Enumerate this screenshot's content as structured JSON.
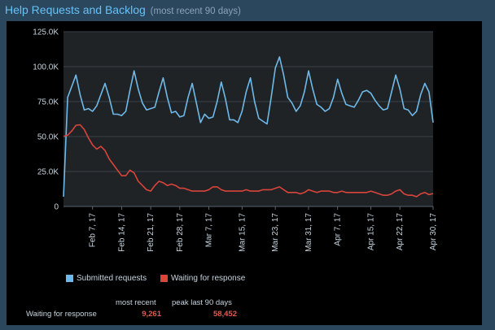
{
  "header": {
    "title": "Help Requests and Backlog",
    "subtitle": "(most recent 90 days)"
  },
  "legend": {
    "items": [
      {
        "label": "Submitted requests",
        "color": "#6fb9e8"
      },
      {
        "label": "Waiting for response",
        "color": "#d9443b"
      }
    ]
  },
  "stats": {
    "col_most_recent": "most recent",
    "col_peak": "peak last 90 days",
    "row_label": "Waiting for response",
    "most_recent_value": "9,261",
    "peak_value": "58,452"
  },
  "chart_data": {
    "type": "line",
    "y_ticks": [
      "0",
      "25.0K",
      "50.0K",
      "75.0K",
      "100.0K",
      "125.0K"
    ],
    "ylim": [
      0,
      125000
    ],
    "x_ticks": [
      "Feb 7, 17",
      "Feb 14, 17",
      "Feb 21, 17",
      "Feb 28, 17",
      "Mar 7, 17",
      "Mar 15, 17",
      "Mar 23, 17",
      "Mar 31, 17",
      "Apr 7, 17",
      "Apr 15, 17",
      "Apr 22, 17",
      "Apr 30, 17"
    ],
    "x_tick_days": [
      7,
      14,
      21,
      28,
      35,
      43,
      51,
      59,
      66,
      74,
      81,
      89
    ],
    "x_domain": [
      0,
      89
    ],
    "grid": true,
    "legend_position": "bottom-left",
    "series": [
      {
        "name": "Submitted requests",
        "color": "#6fb9e8",
        "values": [
          7000,
          78000,
          86000,
          94000,
          80000,
          69000,
          70000,
          68000,
          72000,
          80000,
          88000,
          78000,
          66000,
          66000,
          65000,
          68000,
          83000,
          97000,
          84000,
          74000,
          69000,
          70000,
          71000,
          82000,
          92000,
          78000,
          67000,
          68000,
          64000,
          65000,
          78000,
          88000,
          74000,
          60000,
          66000,
          63000,
          64000,
          75000,
          89000,
          77000,
          62000,
          62000,
          60000,
          68000,
          82000,
          92000,
          75000,
          63000,
          61000,
          59000,
          78000,
          99000,
          107000,
          94000,
          78000,
          74000,
          68000,
          72000,
          82000,
          97000,
          84000,
          73000,
          71000,
          68000,
          70000,
          78000,
          91000,
          81000,
          73000,
          72000,
          71000,
          76000,
          82000,
          83000,
          81000,
          76000,
          72000,
          69000,
          70000,
          82000,
          94000,
          84000,
          70000,
          69000,
          65000,
          68000,
          80000,
          88000,
          82000,
          60000
        ]
      },
      {
        "name": "Waiting for response",
        "color": "#d9443b",
        "values": [
          50000,
          51000,
          54000,
          58000,
          58452,
          55000,
          49000,
          44000,
          41000,
          43000,
          40000,
          34000,
          30000,
          26000,
          22000,
          22000,
          26000,
          24000,
          18000,
          15000,
          12000,
          11000,
          15000,
          18000,
          17000,
          15000,
          16000,
          15000,
          13000,
          13000,
          12000,
          11000,
          11000,
          11000,
          11000,
          12000,
          14000,
          14000,
          12000,
          11000,
          11000,
          11000,
          11000,
          11000,
          12000,
          11000,
          11000,
          11000,
          12000,
          12000,
          12000,
          13000,
          14000,
          12000,
          10000,
          10000,
          10000,
          9000,
          10000,
          12000,
          11000,
          10000,
          11000,
          11000,
          11000,
          10000,
          10000,
          11000,
          10000,
          10000,
          10000,
          10000,
          10000,
          10000,
          11000,
          10000,
          9000,
          8000,
          8000,
          9000,
          11000,
          12000,
          9000,
          8000,
          8000,
          7000,
          9000,
          10000,
          8500,
          9261
        ]
      }
    ]
  }
}
